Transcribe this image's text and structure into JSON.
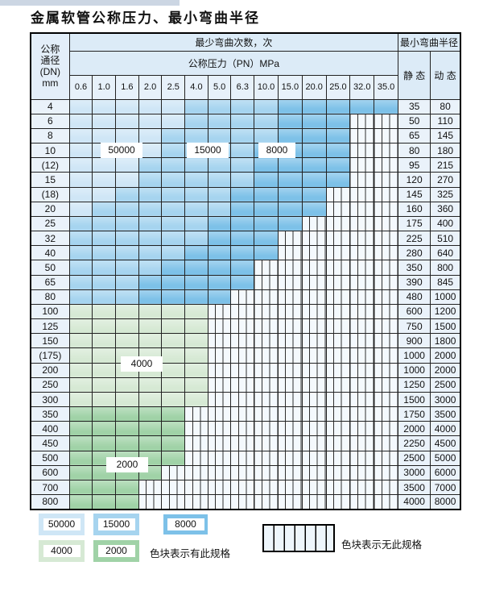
{
  "title": "金属软管公称压力、最小弯曲半径",
  "colors": {
    "band_50000": "#cfe6f6",
    "band_15000": "#a6d4ef",
    "band_8000": "#7dc1e8",
    "band_4000": "#d6e9d4",
    "band_2000": "#a0d2a7",
    "hatch_bg": "#f4f9fd",
    "label_cell_bg": "#eaf2fa",
    "header_bg": "#dcebf7",
    "grid_line": "#222222",
    "top_strip": "#ccd6e3"
  },
  "table": {
    "dn_header_lines": [
      "公称",
      "通径",
      "(DN)",
      "mm"
    ],
    "bend_cycles_header": "最少弯曲次数，次",
    "pressure_header": "公称压力（PN）MPa",
    "pressure_cols": [
      "0.6",
      "1.0",
      "1.6",
      "2.0",
      "2.5",
      "4.0",
      "5.0",
      "6.3",
      "10.0",
      "15.0",
      "20.0",
      "25.0",
      "32.0",
      "35.0"
    ],
    "radius_header": "最小弯曲半径",
    "static_label": "静 态",
    "dynamic_label": "动 态",
    "band_codes": {
      "L": "50000",
      "M": "15000",
      "D": "8000",
      "G": "4000",
      "H": "2000"
    },
    "rows": [
      {
        "dn": "4",
        "cells": [
          "L",
          "L",
          "L",
          "L",
          "L",
          "M",
          "M",
          "M",
          "M",
          "D",
          "D",
          "D",
          "D",
          "D"
        ],
        "static": "35",
        "dynamic": "80"
      },
      {
        "dn": "6",
        "cells": [
          "L",
          "L",
          "L",
          "L",
          "L",
          "M",
          "M",
          "M",
          "M",
          "D",
          "D",
          "D",
          "X",
          "X"
        ],
        "static": "50",
        "dynamic": "110"
      },
      {
        "dn": "8",
        "cells": [
          "L",
          "L",
          "L",
          "L",
          "M",
          "M",
          "M",
          "M",
          "M",
          "D",
          "D",
          "D",
          "X",
          "X"
        ],
        "static": "65",
        "dynamic": "145"
      },
      {
        "dn": "10",
        "cells": [
          "L",
          "L",
          "L",
          "L",
          "M",
          "M",
          "M",
          "M",
          "D",
          "D",
          "D",
          "D",
          "X",
          "X"
        ],
        "static": "80",
        "dynamic": "180"
      },
      {
        "dn": "(12)",
        "cells": [
          "L",
          "L",
          "L",
          "M",
          "M",
          "M",
          "M",
          "M",
          "D",
          "D",
          "D",
          "D",
          "X",
          "X"
        ],
        "static": "95",
        "dynamic": "215"
      },
      {
        "dn": "15",
        "cells": [
          "L",
          "L",
          "L",
          "M",
          "M",
          "M",
          "M",
          "M",
          "D",
          "D",
          "D",
          "D",
          "X",
          "X"
        ],
        "static": "120",
        "dynamic": "270"
      },
      {
        "dn": "(18)",
        "cells": [
          "L",
          "L",
          "M",
          "M",
          "M",
          "M",
          "M",
          "D",
          "D",
          "D",
          "D",
          "X",
          "X",
          "X"
        ],
        "static": "145",
        "dynamic": "325"
      },
      {
        "dn": "20",
        "cells": [
          "L",
          "M",
          "M",
          "M",
          "M",
          "M",
          "M",
          "D",
          "D",
          "D",
          "D",
          "X",
          "X",
          "X"
        ],
        "static": "160",
        "dynamic": "360"
      },
      {
        "dn": "25",
        "cells": [
          "M",
          "M",
          "M",
          "M",
          "M",
          "M",
          "D",
          "D",
          "D",
          "D",
          "X",
          "X",
          "X",
          "X"
        ],
        "static": "175",
        "dynamic": "400"
      },
      {
        "dn": "32",
        "cells": [
          "M",
          "M",
          "M",
          "M",
          "M",
          "M",
          "D",
          "D",
          "D",
          "X",
          "X",
          "X",
          "X",
          "X"
        ],
        "static": "225",
        "dynamic": "510"
      },
      {
        "dn": "40",
        "cells": [
          "M",
          "M",
          "M",
          "M",
          "M",
          "D",
          "D",
          "D",
          "D",
          "X",
          "X",
          "X",
          "X",
          "X"
        ],
        "static": "280",
        "dynamic": "640"
      },
      {
        "dn": "50",
        "cells": [
          "M",
          "M",
          "M",
          "M",
          "D",
          "D",
          "D",
          "D",
          "X",
          "X",
          "X",
          "X",
          "X",
          "X"
        ],
        "static": "350",
        "dynamic": "800"
      },
      {
        "dn": "65",
        "cells": [
          "M",
          "M",
          "M",
          "D",
          "D",
          "D",
          "D",
          "D",
          "X",
          "X",
          "X",
          "X",
          "X",
          "X"
        ],
        "static": "390",
        "dynamic": "845"
      },
      {
        "dn": "80",
        "cells": [
          "M",
          "M",
          "M",
          "D",
          "D",
          "D",
          "D",
          "X",
          "X",
          "X",
          "X",
          "X",
          "X",
          "X"
        ],
        "static": "480",
        "dynamic": "1000"
      },
      {
        "dn": "100",
        "cells": [
          "G",
          "G",
          "G",
          "G",
          "G",
          "G",
          "X",
          "X",
          "X",
          "X",
          "X",
          "X",
          "X",
          "X"
        ],
        "static": "600",
        "dynamic": "1200"
      },
      {
        "dn": "125",
        "cells": [
          "G",
          "G",
          "G",
          "G",
          "G",
          "G",
          "X",
          "X",
          "X",
          "X",
          "X",
          "X",
          "X",
          "X"
        ],
        "static": "750",
        "dynamic": "1500"
      },
      {
        "dn": "150",
        "cells": [
          "G",
          "G",
          "G",
          "G",
          "G",
          "G",
          "X",
          "X",
          "X",
          "X",
          "X",
          "X",
          "X",
          "X"
        ],
        "static": "900",
        "dynamic": "1800"
      },
      {
        "dn": "(175)",
        "cells": [
          "G",
          "G",
          "G",
          "G",
          "G",
          "G",
          "X",
          "X",
          "X",
          "X",
          "X",
          "X",
          "X",
          "X"
        ],
        "static": "1000",
        "dynamic": "2000"
      },
      {
        "dn": "200",
        "cells": [
          "G",
          "G",
          "G",
          "G",
          "G",
          "G",
          "X",
          "X",
          "X",
          "X",
          "X",
          "X",
          "X",
          "X"
        ],
        "static": "1000",
        "dynamic": "2000"
      },
      {
        "dn": "250",
        "cells": [
          "G",
          "G",
          "G",
          "G",
          "G",
          "G",
          "X",
          "X",
          "X",
          "X",
          "X",
          "X",
          "X",
          "X"
        ],
        "static": "1250",
        "dynamic": "2500"
      },
      {
        "dn": "300",
        "cells": [
          "G",
          "G",
          "G",
          "G",
          "G",
          "G",
          "X",
          "X",
          "X",
          "X",
          "X",
          "X",
          "X",
          "X"
        ],
        "static": "1500",
        "dynamic": "3000"
      },
      {
        "dn": "350",
        "cells": [
          "H",
          "H",
          "H",
          "H",
          "H",
          "X",
          "X",
          "X",
          "X",
          "X",
          "X",
          "X",
          "X",
          "X"
        ],
        "static": "1750",
        "dynamic": "3500"
      },
      {
        "dn": "400",
        "cells": [
          "H",
          "H",
          "H",
          "H",
          "H",
          "X",
          "X",
          "X",
          "X",
          "X",
          "X",
          "X",
          "X",
          "X"
        ],
        "static": "2000",
        "dynamic": "4000"
      },
      {
        "dn": "450",
        "cells": [
          "H",
          "H",
          "H",
          "H",
          "H",
          "X",
          "X",
          "X",
          "X",
          "X",
          "X",
          "X",
          "X",
          "X"
        ],
        "static": "2250",
        "dynamic": "4500"
      },
      {
        "dn": "500",
        "cells": [
          "H",
          "H",
          "H",
          "H",
          "H",
          "X",
          "X",
          "X",
          "X",
          "X",
          "X",
          "X",
          "X",
          "X"
        ],
        "static": "2500",
        "dynamic": "5000"
      },
      {
        "dn": "600",
        "cells": [
          "H",
          "H",
          "H",
          "H",
          "X",
          "X",
          "X",
          "X",
          "X",
          "X",
          "X",
          "X",
          "X",
          "X"
        ],
        "static": "3000",
        "dynamic": "6000"
      },
      {
        "dn": "700",
        "cells": [
          "H",
          "H",
          "H",
          "X",
          "X",
          "X",
          "X",
          "X",
          "X",
          "X",
          "X",
          "X",
          "X",
          "X"
        ],
        "static": "3500",
        "dynamic": "7000"
      },
      {
        "dn": "800",
        "cells": [
          "H",
          "H",
          "H",
          "X",
          "X",
          "X",
          "X",
          "X",
          "X",
          "X",
          "X",
          "X",
          "X",
          "X"
        ],
        "static": "4000",
        "dynamic": "8000"
      }
    ],
    "overlays": [
      {
        "label": "50000"
      },
      {
        "label": "15000"
      },
      {
        "label": "8000"
      },
      {
        "label": "4000"
      },
      {
        "label": "2000"
      }
    ]
  },
  "legend": {
    "swatches": [
      {
        "value": "50000",
        "band": "band_50000"
      },
      {
        "value": "15000",
        "band": "band_15000"
      },
      {
        "value": "8000",
        "band": "band_8000"
      },
      {
        "value": "4000",
        "band": "band_4000"
      },
      {
        "value": "2000",
        "band": "band_2000"
      }
    ],
    "has_spec_text": "色块表示有此规格",
    "no_spec_text": "色块表示无此规格"
  }
}
